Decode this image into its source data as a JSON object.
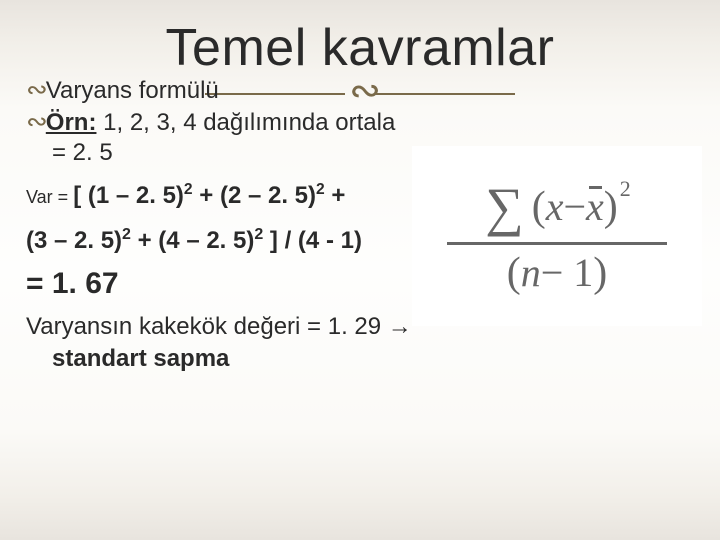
{
  "title": "Temel kavramlar",
  "bullets": {
    "b1": "Varyans formülü",
    "b2_prefix": "Örn:",
    "b2_rest": " 1, 2, 3, 4 dağılımında ortala",
    "b2_eq": "= 2. 5"
  },
  "calc": {
    "var_label": "Var = ",
    "var_expr_a": "[ (1 – 2. 5)",
    "var_expr_b": " + (2 – 2. 5)",
    "var_expr_c": " +",
    "line2_a": "(3 – 2. 5)",
    "line2_b": " + (4 – 2. 5)",
    "line2_c": " ] / (4 - 1)",
    "result": "= 1. 67"
  },
  "footer": {
    "t1": "Varyansın kakekök değeri = 1. 29 ",
    "arrow": "→",
    "t2": "standart sapma"
  },
  "formula": {
    "sigma": "∑",
    "lpar": "(",
    "x": "x",
    "minus": " − ",
    "xbar": "x",
    "rpar": ")",
    "sq": "2",
    "den_l": "(",
    "den_n": "n",
    "den_m": " − 1",
    "den_r": ")"
  },
  "colors": {
    "accent": "#7a6a4a",
    "text": "#2a2a2a",
    "formula_text": "#676767",
    "formula_bg": "#ffffff"
  }
}
